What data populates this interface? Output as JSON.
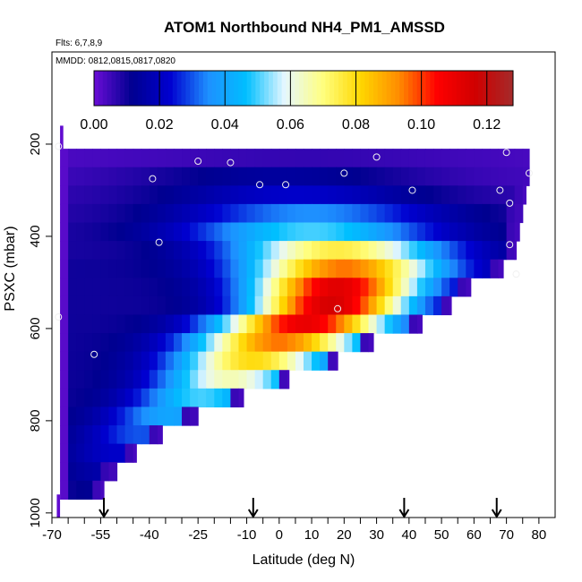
{
  "chart_data": {
    "type": "heatmap",
    "title": "ATOM1 Northbound NH4_PM1_AMSSD",
    "subtitle_flights": "Flts: 6,7,8,9",
    "subtitle_dates": "MMDD: 0812,0815,0817,0820",
    "xlabel": "Latitude (deg N)",
    "ylabel": "PSXC (mbar)",
    "xlim": [
      -70,
      85
    ],
    "ylim": [
      1010,
      0
    ],
    "x_ticks": [
      -70,
      -55,
      -40,
      -25,
      -10,
      0,
      10,
      20,
      30,
      40,
      50,
      60,
      70,
      80
    ],
    "x_ticks_labels": [
      "-70",
      "-55",
      "-40",
      "-25",
      "-10",
      "0",
      "10",
      "20",
      "30",
      "40",
      "50",
      "60",
      "70",
      "80"
    ],
    "y_ticks": [
      200,
      400,
      600,
      800,
      1000
    ],
    "y_ticks_labels": [
      "200",
      "400",
      "600",
      "800",
      "1000"
    ],
    "colorbar": {
      "range": [
        0,
        0.128
      ],
      "ticks": [
        0.0,
        0.02,
        0.04,
        0.06,
        0.08,
        0.1,
        0.12
      ],
      "tick_labels": [
        "0.00",
        "0.02",
        "0.04",
        "0.06",
        "0.08",
        "0.10",
        "0.12"
      ],
      "colors": [
        "#6a0dd6",
        "#000090",
        "#0000d0",
        "#1e90ff",
        "#00bfff",
        "#e6f7ff",
        "#ffff80",
        "#ffd700",
        "#ff8c00",
        "#ff0000",
        "#d00000",
        "#a52a2a"
      ]
    },
    "profile_arrows_latitude": [
      -54,
      -8,
      38.5,
      67
    ],
    "layers": [
      {
        "p_top": 210,
        "p_bot": 250,
        "lat_start": -67.5,
        "lat_end": 77,
        "peak_lat": 10,
        "peak": 0.006,
        "width": 60,
        "base": 0.003
      },
      {
        "p_top": 250,
        "p_bot": 290,
        "lat_start": -67.5,
        "lat_end": 77,
        "peak_lat": 0,
        "peak": 0.014,
        "width": 45,
        "base": 0.004
      },
      {
        "p_top": 290,
        "p_bot": 330,
        "lat_start": -67.5,
        "lat_end": 76,
        "peak_lat": 5,
        "peak": 0.022,
        "width": 40,
        "base": 0.006
      },
      {
        "p_top": 330,
        "p_bot": 370,
        "lat_start": -67.5,
        "lat_end": 75,
        "peak_lat": 10,
        "peak": 0.035,
        "width": 40,
        "base": 0.007
      },
      {
        "p_top": 370,
        "p_bot": 410,
        "lat_start": -67.5,
        "lat_end": 74,
        "peak_lat": 10,
        "peak": 0.05,
        "width": 38,
        "base": 0.008
      },
      {
        "p_top": 410,
        "p_bot": 450,
        "lat_start": -67.5,
        "lat_end": 73,
        "peak_lat": 18,
        "peak": 0.075,
        "width": 33,
        "base": 0.009
      },
      {
        "p_top": 450,
        "p_bot": 490,
        "lat_start": -67.5,
        "lat_end": 69,
        "peak_lat": 20,
        "peak": 0.095,
        "width": 30,
        "base": 0.01
      },
      {
        "p_top": 490,
        "p_bot": 530,
        "lat_start": -67.5,
        "lat_end": 59,
        "peak_lat": 18,
        "peak": 0.112,
        "width": 26,
        "base": 0.01
      },
      {
        "p_top": 530,
        "p_bot": 570,
        "lat_start": -67.5,
        "lat_end": 53,
        "peak_lat": 16,
        "peak": 0.115,
        "width": 24,
        "base": 0.01
      },
      {
        "p_top": 570,
        "p_bot": 610,
        "lat_start": -67.5,
        "lat_end": 44,
        "peak_lat": 8,
        "peak": 0.11,
        "width": 26,
        "base": 0.01
      },
      {
        "p_top": 610,
        "p_bot": 650,
        "lat_start": -67.5,
        "lat_end": 29,
        "peak_lat": 0,
        "peak": 0.095,
        "width": 26,
        "base": 0.01
      },
      {
        "p_top": 650,
        "p_bot": 690,
        "lat_start": -67.5,
        "lat_end": 18,
        "peak_lat": -8,
        "peak": 0.08,
        "width": 24,
        "base": 0.01
      },
      {
        "p_top": 690,
        "p_bot": 730,
        "lat_start": -67.5,
        "lat_end": 3,
        "peak_lat": -15,
        "peak": 0.065,
        "width": 22,
        "base": 0.01
      },
      {
        "p_top": 730,
        "p_bot": 770,
        "lat_start": -67.5,
        "lat_end": -11,
        "peak_lat": -24,
        "peak": 0.05,
        "width": 20,
        "base": 0.01
      },
      {
        "p_top": 770,
        "p_bot": 810,
        "lat_start": -67.5,
        "lat_end": -25,
        "peak_lat": -34,
        "peak": 0.04,
        "width": 18,
        "base": 0.01
      },
      {
        "p_top": 810,
        "p_bot": 850,
        "lat_start": -67.5,
        "lat_end": -36,
        "peak_lat": -43,
        "peak": 0.03,
        "width": 16,
        "base": 0.01
      },
      {
        "p_top": 850,
        "p_bot": 890,
        "lat_start": -67.5,
        "lat_end": -44,
        "peak_lat": -50,
        "peak": 0.022,
        "width": 14,
        "base": 0.01
      },
      {
        "p_top": 890,
        "p_bot": 930,
        "lat_start": -67.5,
        "lat_end": -50,
        "peak_lat": -55,
        "peak": 0.016,
        "width": 12,
        "base": 0.009
      },
      {
        "p_top": 930,
        "p_bot": 970,
        "lat_start": -67.5,
        "lat_end": -54,
        "peak_lat": -58,
        "peak": 0.012,
        "width": 10,
        "base": 0.008
      }
    ],
    "extra_cells": [
      {
        "p_top": 160,
        "p_bot": 210,
        "lat_start": -67.5,
        "lat_end": -66.5,
        "value": 0.001
      },
      {
        "p_top": 960,
        "p_bot": 1010,
        "lat_start": -68.5,
        "lat_end": -67.5,
        "value": 0.001
      }
    ],
    "sample_points": [
      {
        "lat": -68,
        "p": 205
      },
      {
        "lat": -25,
        "p": 237
      },
      {
        "lat": -15,
        "p": 240
      },
      {
        "lat": 30,
        "p": 228
      },
      {
        "lat": 70,
        "p": 218
      },
      {
        "lat": -39,
        "p": 275
      },
      {
        "lat": -6,
        "p": 288
      },
      {
        "lat": 2,
        "p": 288
      },
      {
        "lat": 20,
        "p": 263
      },
      {
        "lat": 41,
        "p": 300
      },
      {
        "lat": 68,
        "p": 300
      },
      {
        "lat": 77,
        "p": 263
      },
      {
        "lat": 71,
        "p": 328
      },
      {
        "lat": -37,
        "p": 413
      },
      {
        "lat": 71,
        "p": 418
      },
      {
        "lat": 73,
        "p": 482
      },
      {
        "lat": 18,
        "p": 557
      },
      {
        "lat": -57,
        "p": 656
      },
      {
        "lat": -68,
        "p": 575
      }
    ]
  }
}
